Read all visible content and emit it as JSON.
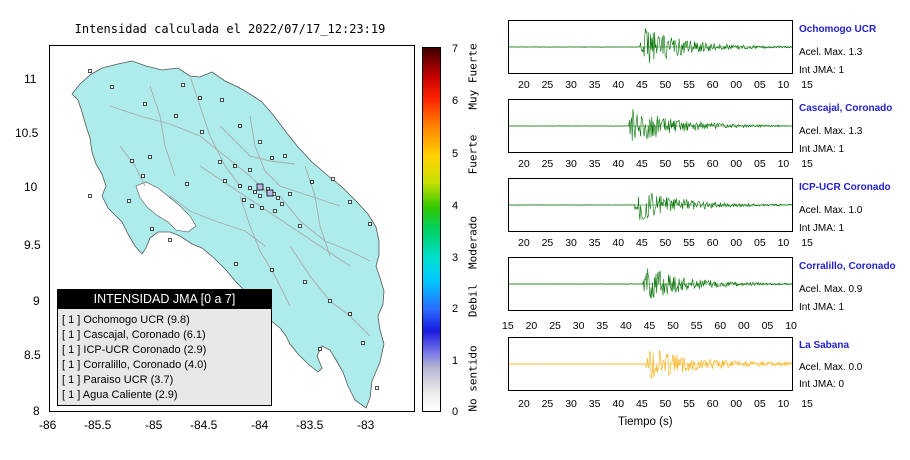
{
  "map": {
    "title": "Intensidad calculada el 2022/07/17_12:23:19",
    "lat_ticks": [
      "11",
      "10.5",
      "10",
      "9.5",
      "9",
      "8.5",
      "8"
    ],
    "lon_ticks": [
      "-86",
      "-85.5",
      "-85",
      "-84.5",
      "-84",
      "-83.5",
      "-83"
    ],
    "land_color": "#aeecec",
    "ocean_color": "#ffffff",
    "boundary_color": "#a9a9a9"
  },
  "legend": {
    "title": "INTENSIDAD JMA [0 a 7]",
    "items": [
      "[ 1 ]  Ochomogo UCR (9.8)",
      "[ 1 ]  Cascajal, Coronado (6.1)",
      "[ 1 ]  ICP-UCR Coronado (2.9)",
      "[ 1 ]  Corralillo, Coronado (4.0)",
      "[ 1 ]  Paraiso UCR (3.7)",
      "[ 1 ]  Agua Caliente (2.9)"
    ]
  },
  "colorbar": {
    "ticks": [
      "7",
      "6",
      "5",
      "4",
      "3",
      "2",
      "1",
      "0"
    ],
    "levels": [
      "Muy Fuerte",
      "Fuerte",
      "Moderado",
      "Debil",
      "No sentido"
    ]
  },
  "seismograms": {
    "x_title": "Tiempo (s)",
    "stations": [
      {
        "name": "Ochomogo UCR",
        "accel": "Acel. Max. 1.3",
        "jma": "Int JMA: 1",
        "color": "#007000",
        "ticks": [
          "20",
          "25",
          "30",
          "35",
          "40",
          "45",
          "50",
          "55",
          "60",
          "00",
          "05",
          "10",
          "15"
        ]
      },
      {
        "name": "Cascajal, Coronado",
        "accel": "Acel. Max. 1.3",
        "jma": "Int JMA: 1",
        "color": "#007000",
        "ticks": [
          "20",
          "25",
          "30",
          "35",
          "40",
          "45",
          "50",
          "55",
          "60",
          "00",
          "05",
          "10",
          "15"
        ]
      },
      {
        "name": "ICP-UCR Coronado",
        "accel": "Acel. Max. 1.0",
        "jma": "Int JMA: 1",
        "color": "#007000",
        "ticks": [
          "20",
          "25",
          "30",
          "35",
          "40",
          "45",
          "50",
          "55",
          "60",
          "00",
          "05",
          "10",
          "15"
        ]
      },
      {
        "name": "Corralillo, Coronado",
        "accel": "Acel. Max. 0.9",
        "jma": "Int JMA: 1",
        "color": "#007000",
        "ticks": [
          "15",
          "20",
          "25",
          "30",
          "35",
          "40",
          "45",
          "50",
          "55",
          "60",
          "00",
          "05",
          "10"
        ]
      },
      {
        "name": "La Sabana",
        "accel": "Acel. Max. 0.0",
        "jma": "Int JMA: 0",
        "color": "#ffaa00",
        "ticks": [
          "20",
          "25",
          "30",
          "35",
          "40",
          "45",
          "50",
          "55",
          "60",
          "00",
          "05",
          "10",
          "15"
        ]
      }
    ]
  }
}
